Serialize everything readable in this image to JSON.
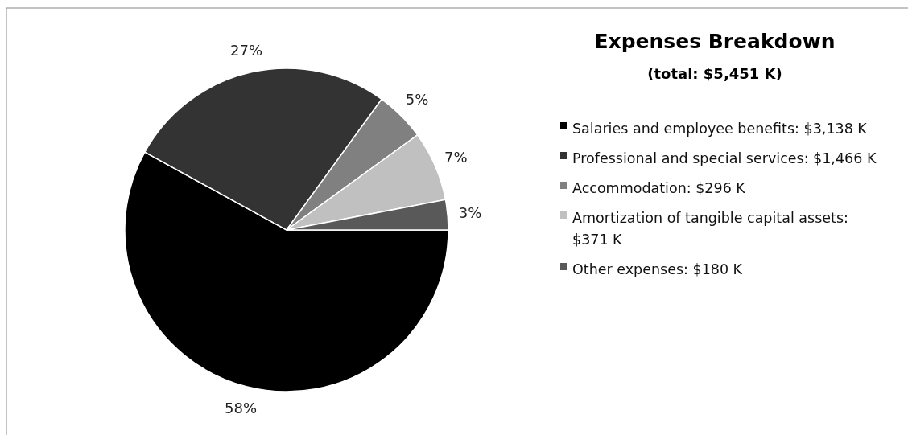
{
  "chart_data": {
    "type": "pie",
    "title": "Expenses Breakdown",
    "subtitle": "(total: $5,451 K)",
    "categories": [
      "Salaries and employee benefits: $3,138  K",
      "Professional and special services: $1,466  K",
      "Accommodation: $296  K",
      "Amortization of tangible capital assets: $371  K",
      "Other expenses: $180  K"
    ],
    "values": [
      58,
      27,
      5,
      7,
      3
    ],
    "value_labels": [
      "58%",
      "27%",
      "5%",
      "7%",
      "3%"
    ],
    "colors": [
      "#000000",
      "#333333",
      "#808080",
      "#c0c0c0",
      "#595959"
    ],
    "legend": "right"
  }
}
